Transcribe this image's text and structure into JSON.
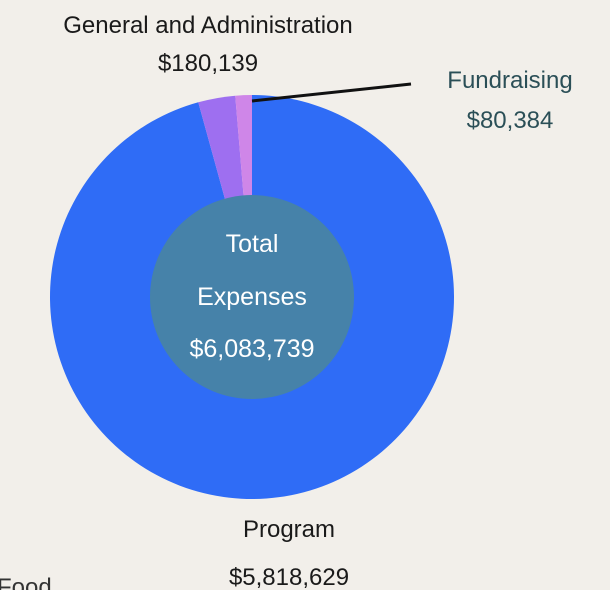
{
  "chart_data": {
    "type": "pie",
    "series": [
      {
        "name": "Program",
        "value_label": "$5,818,629",
        "value": 5818629,
        "color": "#2f6cf6"
      },
      {
        "name": "General and Administration",
        "value_label": "$180,139",
        "value": 180139,
        "color": "#9e6ff0"
      },
      {
        "name": "Fundraising",
        "value_label": "$80,384",
        "value": 80384,
        "color": "#cf86e8"
      }
    ],
    "center": {
      "line1": "Total",
      "line2": "Expenses",
      "line3": "$6,083,739",
      "color": "#4682a9"
    },
    "partial_label": "Food"
  }
}
